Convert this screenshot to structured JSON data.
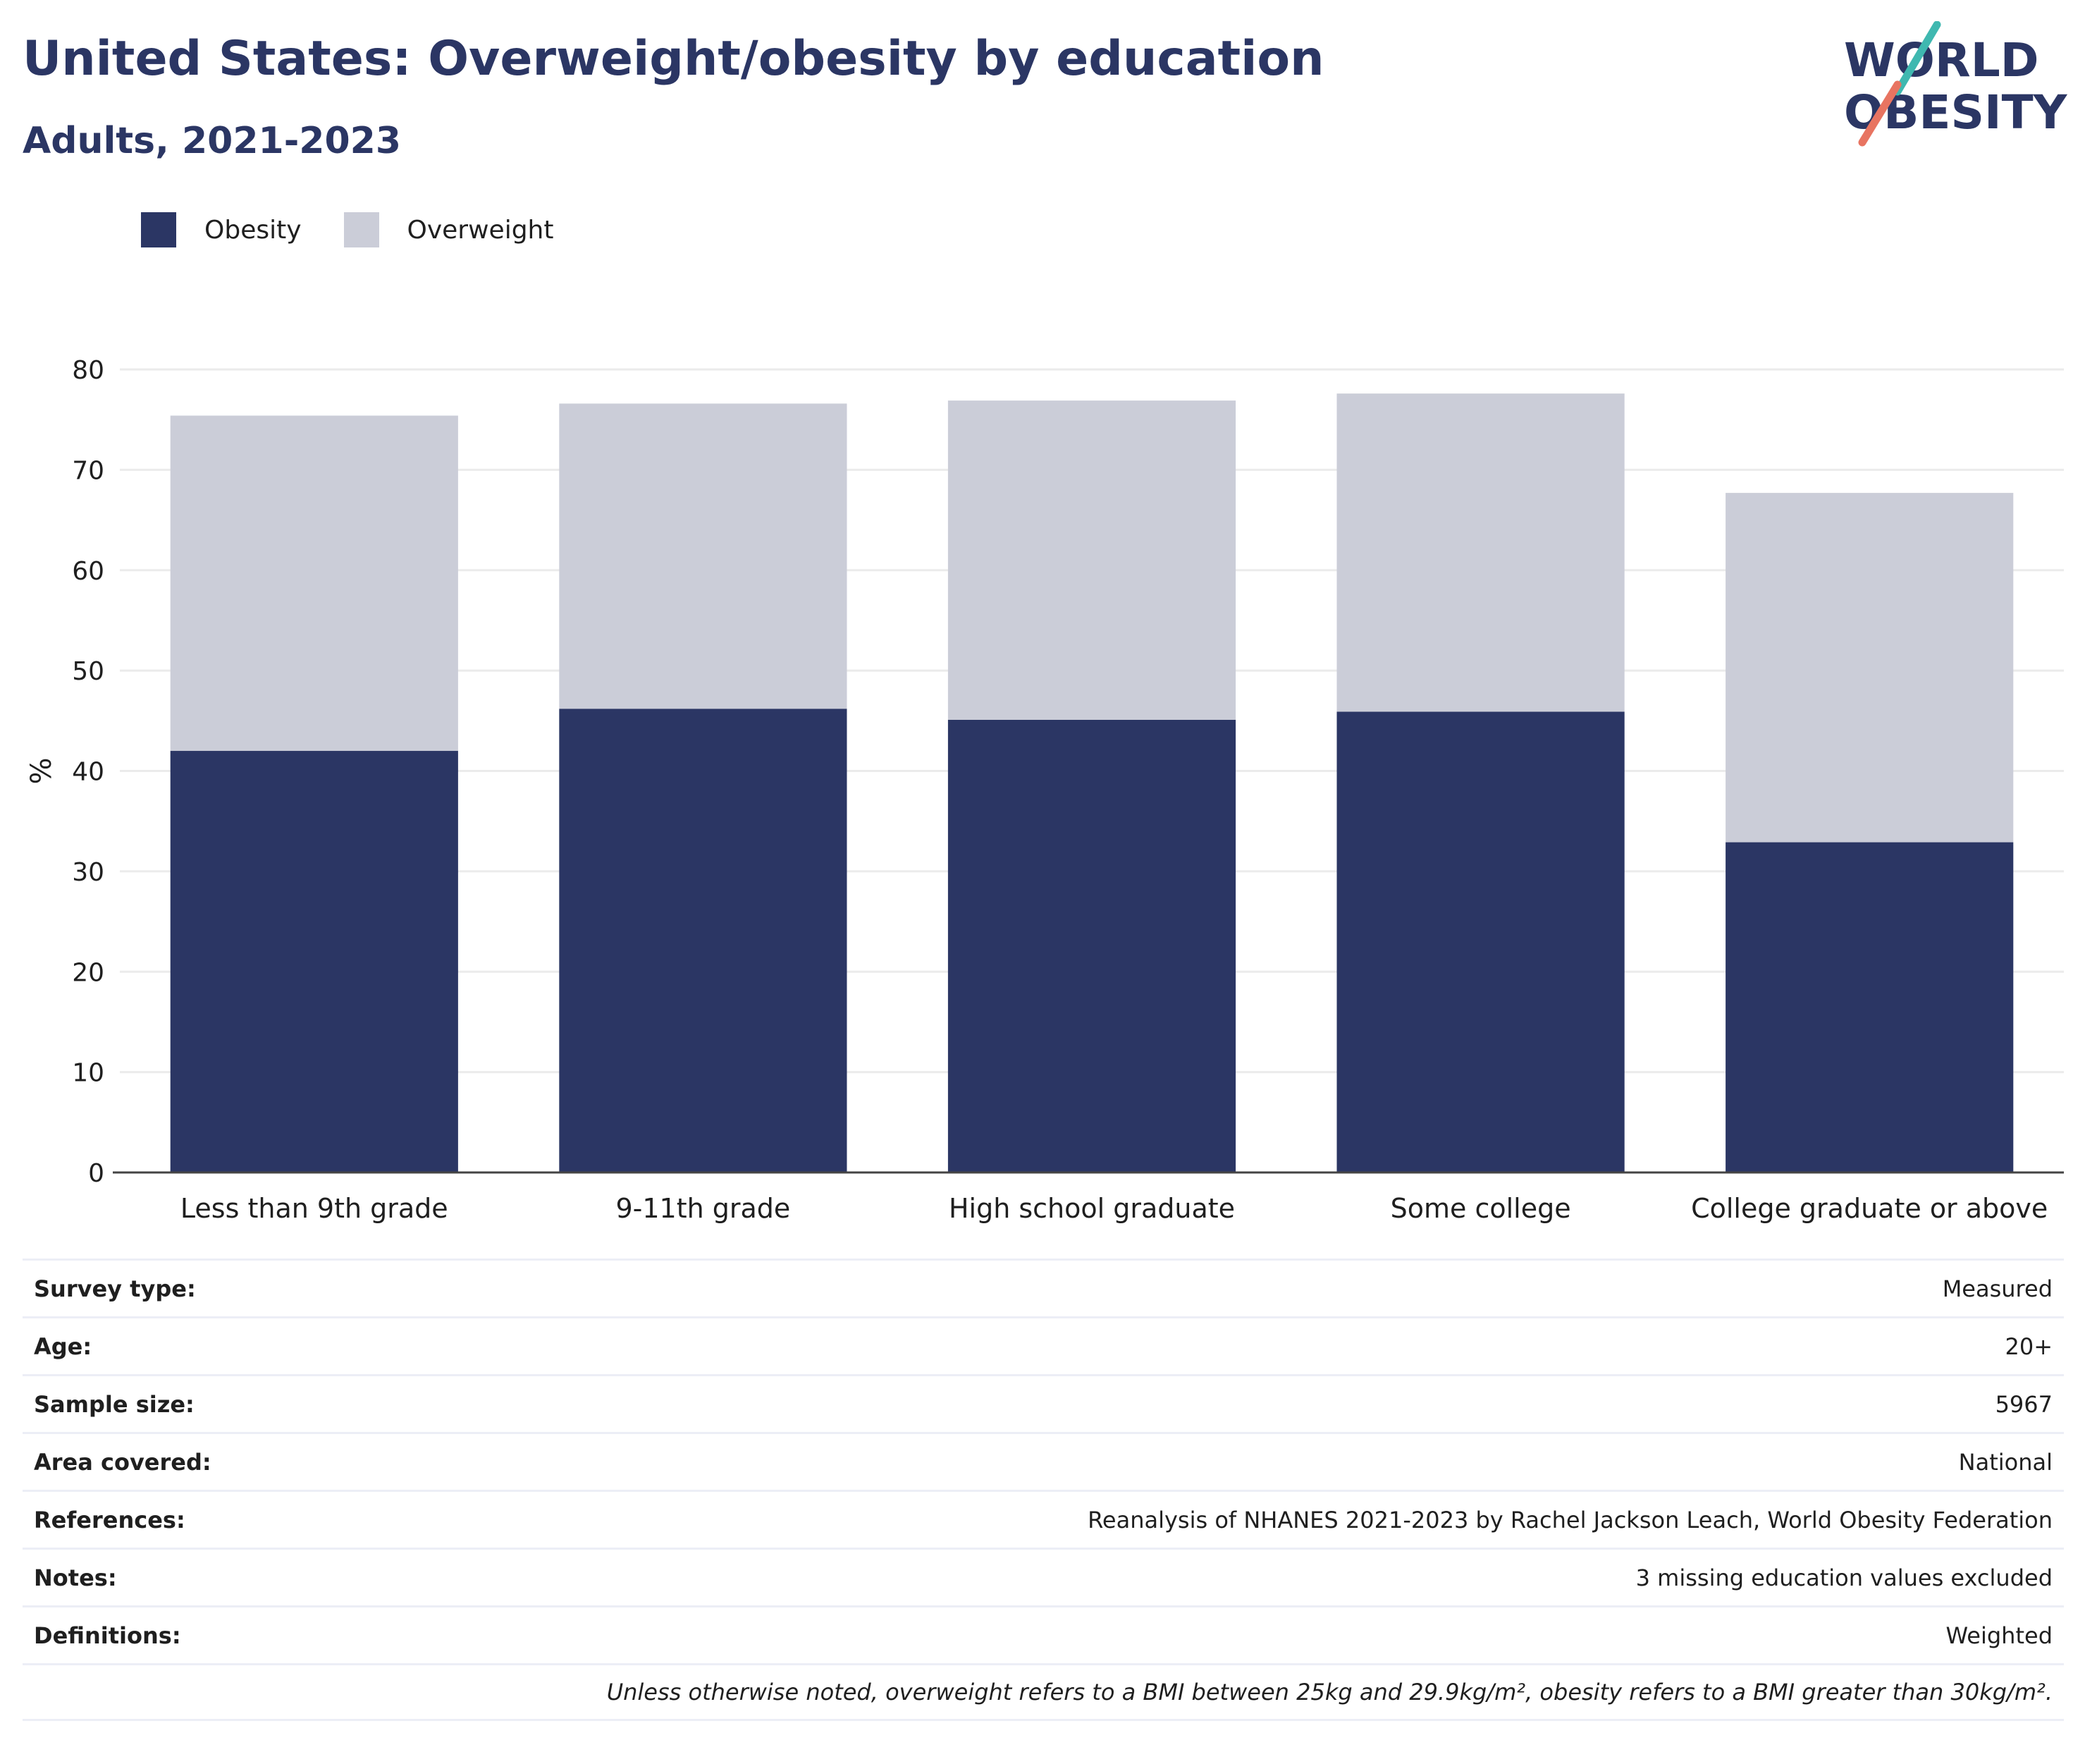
{
  "header": {
    "title": "United States: Overweight/obesity by education",
    "subtitle": "Adults, 2021-2023"
  },
  "logo": {
    "line1": "WORLD",
    "line2": "OBESITY"
  },
  "colors": {
    "obesity": "#2b3664",
    "overweight": "#cbcdd8",
    "logo_teal": "#3fb8b0",
    "logo_coral": "#e87461"
  },
  "chart_data": {
    "type": "bar",
    "stacked": true,
    "categories": [
      "Less than 9th grade",
      "9-11th grade",
      "High school graduate",
      "Some college",
      "College graduate or above"
    ],
    "series": [
      {
        "name": "Obesity",
        "values": [
          42.0,
          46.2,
          45.1,
          45.9,
          32.9
        ]
      },
      {
        "name": "Overweight",
        "values": [
          33.4,
          30.4,
          31.8,
          31.7,
          34.8
        ]
      }
    ],
    "yticks": [
      "0",
      "10",
      "20",
      "30",
      "40",
      "50",
      "60",
      "70",
      "80"
    ],
    "ylim": [
      0,
      80
    ],
    "ylabel": "%",
    "xlabel": "",
    "grid": true,
    "legend_position": "top-left"
  },
  "meta": {
    "rows": [
      {
        "label": "Survey type:",
        "value": "Measured"
      },
      {
        "label": "Age:",
        "value": "20+"
      },
      {
        "label": "Sample size:",
        "value": "5967"
      },
      {
        "label": "Area covered:",
        "value": "National"
      },
      {
        "label": "References:",
        "value": "Reanalysis of NHANES 2021-2023 by Rachel Jackson Leach, World Obesity Federation"
      },
      {
        "label": "Notes:",
        "value": "3 missing education values excluded"
      },
      {
        "label": "Definitions:",
        "value": "Weighted"
      }
    ],
    "footnote": "Unless otherwise noted, overweight refers to a BMI between 25kg and 29.9kg/m², obesity refers to a BMI greater than 30kg/m²."
  }
}
